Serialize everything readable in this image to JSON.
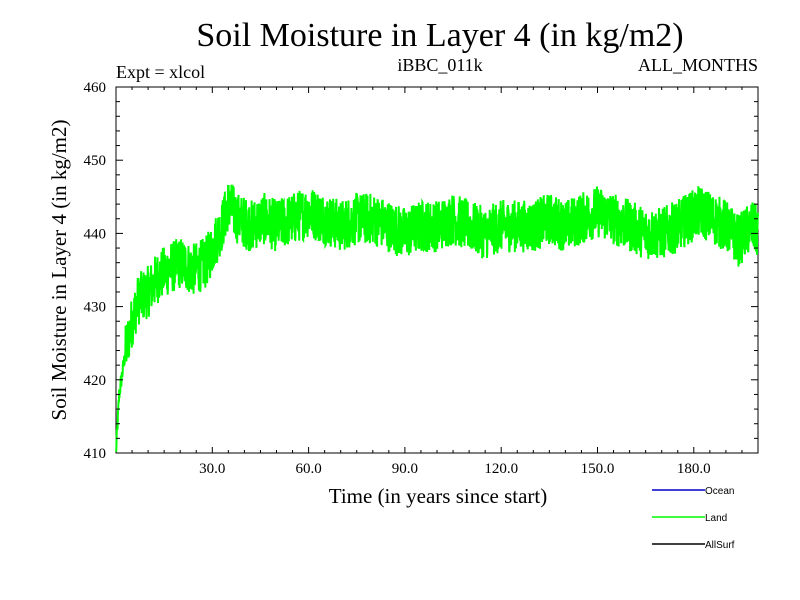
{
  "chart_data": {
    "type": "line",
    "title": "Soil Moisture in Layer 4 (in kg/m2)",
    "subtitle_left": "Expt = xlcol",
    "subtitle_center": "iBBC_011k",
    "subtitle_right": "ALL_MONTHS",
    "xlabel": "Time (in years since start)",
    "ylabel": "Soil Moisture in Layer 4 (in kg/m2)",
    "xlim": [
      0,
      200
    ],
    "ylim": [
      410,
      460
    ],
    "x_ticks": [
      30,
      60,
      90,
      120,
      150,
      180
    ],
    "x_tick_labels": [
      "30.0",
      "60.0",
      "90.0",
      "120.0",
      "150.0",
      "180.0"
    ],
    "y_ticks": [
      410,
      420,
      430,
      440,
      450,
      460
    ],
    "y_tick_labels": [
      "410",
      "420",
      "430",
      "440",
      "450",
      "460"
    ],
    "grid": false,
    "legend_position": "bottom-right",
    "series": [
      {
        "name": "Ocean",
        "color": "#0000cc",
        "values": []
      },
      {
        "name": "Land",
        "color": "#00ff00",
        "x": [
          0,
          1,
          2,
          3,
          5,
          7,
          10,
          13,
          16,
          20,
          24,
          28,
          30,
          33,
          35,
          38,
          42,
          46,
          50,
          55,
          60,
          65,
          70,
          75,
          80,
          85,
          90,
          95,
          100,
          105,
          110,
          115,
          120,
          125,
          130,
          135,
          140,
          145,
          150,
          155,
          160,
          165,
          170,
          175,
          178,
          182,
          186,
          190,
          194,
          198,
          200
        ],
        "values": [
          410,
          418,
          421,
          424,
          428,
          431,
          432,
          434,
          435,
          436,
          435,
          436,
          438,
          441,
          444,
          442,
          441,
          442,
          441,
          442,
          443,
          442,
          441,
          442,
          442,
          441,
          440,
          441,
          441,
          442,
          441,
          440,
          441,
          441,
          441,
          442,
          441,
          442,
          443,
          442,
          441,
          440,
          440,
          441,
          442,
          443,
          442,
          441,
          439,
          441,
          440
        ]
      },
      {
        "name": "AllSurf",
        "color": "#000000",
        "values": []
      }
    ]
  }
}
